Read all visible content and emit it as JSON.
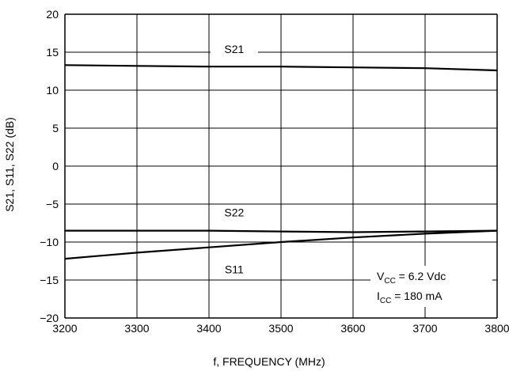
{
  "chart_data": {
    "type": "line",
    "xlabel": "f, FREQUENCY (MHz)",
    "ylabel": "S21, S11, S22 (dB)",
    "xlim": [
      3200,
      3800
    ],
    "ylim": [
      -20,
      20
    ],
    "x_ticks": [
      "3200",
      "3300",
      "3400",
      "3500",
      "3600",
      "3700",
      "3800"
    ],
    "y_ticks": [
      "20",
      "15",
      "10",
      "5",
      "0",
      "−5",
      "−10",
      "−15",
      "−20"
    ],
    "grid": true,
    "series": [
      {
        "name": "S21",
        "x": [
          3200,
          3300,
          3400,
          3500,
          3600,
          3700,
          3800
        ],
        "y": [
          13.3,
          13.2,
          13.1,
          13.1,
          13.0,
          12.9,
          12.6
        ]
      },
      {
        "name": "S22",
        "x": [
          3200,
          3300,
          3400,
          3500,
          3600,
          3700,
          3800
        ],
        "y": [
          -8.5,
          -8.5,
          -8.5,
          -8.6,
          -8.7,
          -8.6,
          -8.5
        ]
      },
      {
        "name": "S11",
        "x": [
          3200,
          3300,
          3400,
          3500,
          3600,
          3700,
          3800
        ],
        "y": [
          -12.2,
          -11.4,
          -10.7,
          -10.0,
          -9.4,
          -8.9,
          -8.5
        ]
      }
    ],
    "annotation": {
      "vcc_main": "V",
      "vcc_sub": "CC",
      "vcc_value": " = 6.2 Vdc",
      "icc_main": "I",
      "icc_sub": "CC",
      "icc_value": " = 180 mA"
    }
  }
}
